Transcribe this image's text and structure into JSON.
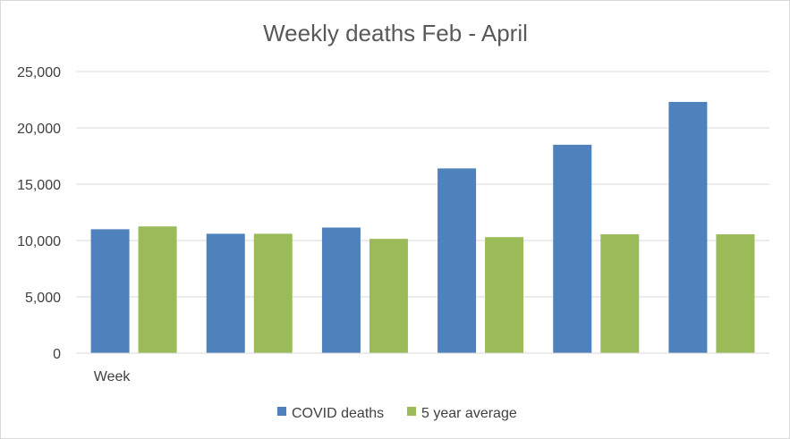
{
  "chart_data": {
    "type": "bar",
    "title": "Weekly deaths Feb - April",
    "categories": [
      "Week",
      "",
      "",
      "",
      "",
      ""
    ],
    "series": [
      {
        "name": "COVID deaths",
        "color": "#4F81BD",
        "values": [
          11000,
          10600,
          11150,
          16400,
          18500,
          22300
        ]
      },
      {
        "name": "5 year average",
        "color": "#9BBB59",
        "values": [
          11250,
          10600,
          10150,
          10300,
          10550,
          10550
        ]
      }
    ],
    "ylim": [
      0,
      25000
    ],
    "yticks": [
      0,
      5000,
      10000,
      15000,
      20000,
      25000
    ],
    "ytick_labels": [
      "0",
      "5,000",
      "10,000",
      "15,000",
      "20,000",
      "25,000"
    ],
    "gridlines": true,
    "legend_position": "bottom"
  }
}
